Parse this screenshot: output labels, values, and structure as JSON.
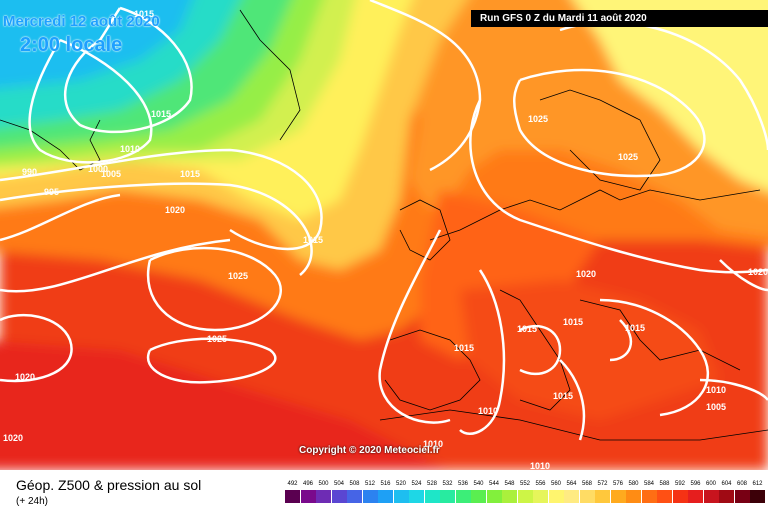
{
  "header": {
    "date": "Mercredi 12 août 2020",
    "time": "2:00 locale",
    "run": "Run GFS 0 Z du Mardi 11 août 2020"
  },
  "copyright": "Copyright © 2020 Meteociel.fr",
  "footer": {
    "title": "Géop. Z500 & pression au sol",
    "subtitle": "(+ 24h)"
  },
  "isobar_labels": [
    "1015",
    "1015",
    "1010",
    "1005",
    "1000",
    "990",
    "995",
    "1015",
    "1020",
    "1025",
    "1025",
    "1020",
    "1015",
    "1025",
    "1020",
    "1015",
    "1015",
    "1015",
    "1015",
    "1010",
    "1015",
    "1010",
    "1005",
    "1020",
    "1025",
    "1010",
    "1010",
    "1020"
  ],
  "legend": {
    "values": [
      "492",
      "496",
      "500",
      "504",
      "508",
      "512",
      "516",
      "520",
      "524",
      "528",
      "532",
      "536",
      "540",
      "544",
      "548",
      "552",
      "556",
      "560",
      "564",
      "568",
      "572",
      "576",
      "580",
      "584",
      "588",
      "592",
      "596",
      "600",
      "604",
      "608",
      "612"
    ],
    "colors": [
      "#5a0050",
      "#7a0a8c",
      "#6e2cb4",
      "#5a46d2",
      "#4664e6",
      "#2c82f0",
      "#1ea0f5",
      "#1ebef0",
      "#1ed7e6",
      "#1ee6c8",
      "#28eba0",
      "#3cee78",
      "#5aee50",
      "#82f03c",
      "#aaf03c",
      "#cdf546",
      "#e6f55a",
      "#fff56e",
      "#ffeb82",
      "#ffdc64",
      "#ffc83c",
      "#ffaa1e",
      "#ff8c14",
      "#ff6e14",
      "#ff5014",
      "#f53214",
      "#e61e1e",
      "#c8141e",
      "#a00a14",
      "#780014",
      "#3c0008"
    ]
  }
}
